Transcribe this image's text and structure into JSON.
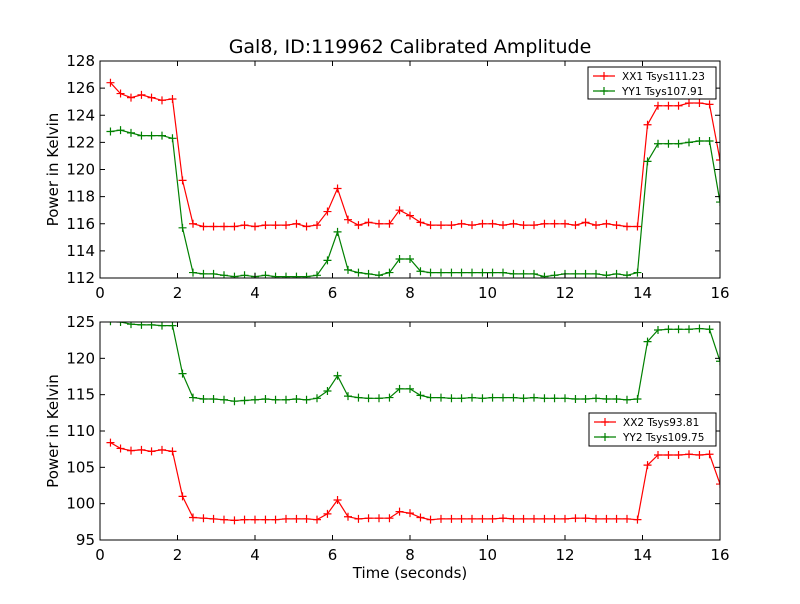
{
  "title": "Gal8, ID:119962 Calibrated Amplitude",
  "chart_data": [
    {
      "type": "line",
      "ylabel": "Power in Kelvin",
      "xlabel": "",
      "xlim": [
        0,
        16
      ],
      "ylim": [
        112,
        128
      ],
      "xticks": [
        0,
        2,
        4,
        6,
        8,
        10,
        12,
        14,
        16
      ],
      "yticks": [
        112,
        114,
        116,
        118,
        120,
        122,
        124,
        126,
        128
      ],
      "legend_position": "top-right",
      "grid": false,
      "x": [
        0.27,
        0.53,
        0.8,
        1.07,
        1.33,
        1.6,
        1.87,
        2.13,
        2.4,
        2.67,
        2.93,
        3.2,
        3.47,
        3.73,
        4.0,
        4.27,
        4.53,
        4.8,
        5.07,
        5.33,
        5.6,
        5.87,
        6.13,
        6.4,
        6.67,
        6.93,
        7.2,
        7.47,
        7.73,
        8.0,
        8.27,
        8.53,
        8.8,
        9.07,
        9.33,
        9.6,
        9.87,
        10.13,
        10.4,
        10.67,
        10.93,
        11.2,
        11.47,
        11.73,
        12.0,
        12.27,
        12.53,
        12.8,
        13.07,
        13.33,
        13.6,
        13.87,
        14.13,
        14.4,
        14.67,
        14.93,
        15.2,
        15.47,
        15.73,
        16.0
      ],
      "series": [
        {
          "name": "XX1 Tsys111.23",
          "color": "#ff0000",
          "values": [
            126.4,
            125.6,
            125.3,
            125.5,
            125.3,
            125.1,
            125.2,
            119.2,
            116.0,
            115.8,
            115.8,
            115.8,
            115.8,
            115.9,
            115.8,
            115.9,
            115.9,
            115.9,
            116.0,
            115.8,
            115.9,
            116.9,
            118.6,
            116.3,
            115.9,
            116.1,
            116.0,
            116.0,
            117.0,
            116.6,
            116.1,
            115.9,
            115.9,
            115.9,
            116.0,
            115.9,
            116.0,
            116.0,
            115.9,
            116.0,
            115.9,
            115.9,
            116.0,
            116.0,
            116.0,
            115.9,
            116.1,
            115.9,
            116.0,
            115.9,
            115.8,
            115.8,
            123.3,
            124.7,
            124.7,
            124.7,
            124.9,
            124.9,
            124.8,
            120.7
          ]
        },
        {
          "name": "YY1 Tsys107.91",
          "color": "#008000",
          "values": [
            122.8,
            122.9,
            122.7,
            122.5,
            122.5,
            122.5,
            122.3,
            115.7,
            112.4,
            112.3,
            112.3,
            112.2,
            112.1,
            112.2,
            112.1,
            112.2,
            112.1,
            112.1,
            112.1,
            112.1,
            112.2,
            113.3,
            115.4,
            112.6,
            112.4,
            112.3,
            112.2,
            112.4,
            113.4,
            113.4,
            112.5,
            112.4,
            112.4,
            112.4,
            112.4,
            112.4,
            112.4,
            112.4,
            112.4,
            112.3,
            112.3,
            112.3,
            112.1,
            112.2,
            112.3,
            112.3,
            112.3,
            112.3,
            112.2,
            112.3,
            112.2,
            112.4,
            120.6,
            121.9,
            121.9,
            121.9,
            122.0,
            122.1,
            122.1,
            117.6
          ]
        }
      ]
    },
    {
      "type": "line",
      "ylabel": "Power in Kelvin",
      "xlabel": "Time (seconds)",
      "xlim": [
        0,
        16
      ],
      "ylim": [
        95,
        125
      ],
      "xticks": [
        0,
        2,
        4,
        6,
        8,
        10,
        12,
        14,
        16
      ],
      "yticks": [
        95,
        100,
        105,
        110,
        115,
        120,
        125
      ],
      "legend_position": "right",
      "grid": false,
      "x": [
        0.27,
        0.53,
        0.8,
        1.07,
        1.33,
        1.6,
        1.87,
        2.13,
        2.4,
        2.67,
        2.93,
        3.2,
        3.47,
        3.73,
        4.0,
        4.27,
        4.53,
        4.8,
        5.07,
        5.33,
        5.6,
        5.87,
        6.13,
        6.4,
        6.67,
        6.93,
        7.2,
        7.47,
        7.73,
        8.0,
        8.27,
        8.53,
        8.8,
        9.07,
        9.33,
        9.6,
        9.87,
        10.13,
        10.4,
        10.67,
        10.93,
        11.2,
        11.47,
        11.73,
        12.0,
        12.27,
        12.53,
        12.8,
        13.07,
        13.33,
        13.6,
        13.87,
        14.13,
        14.4,
        14.67,
        14.93,
        15.2,
        15.47,
        15.73,
        16.0
      ],
      "series": [
        {
          "name": "XX2 Tsys93.81",
          "color": "#ff0000",
          "values": [
            108.4,
            107.6,
            107.3,
            107.4,
            107.2,
            107.4,
            107.2,
            101.0,
            98.1,
            98.0,
            97.9,
            97.8,
            97.7,
            97.8,
            97.8,
            97.8,
            97.8,
            97.9,
            97.9,
            97.9,
            97.8,
            98.6,
            100.5,
            98.2,
            97.9,
            98.0,
            98.0,
            98.0,
            98.9,
            98.7,
            98.1,
            97.8,
            97.9,
            97.9,
            97.9,
            97.9,
            97.9,
            97.9,
            98.0,
            97.9,
            97.9,
            97.9,
            97.9,
            97.9,
            97.9,
            98.0,
            98.0,
            97.9,
            97.9,
            97.9,
            97.9,
            97.8,
            105.3,
            106.7,
            106.7,
            106.7,
            106.8,
            106.7,
            106.8,
            102.7
          ]
        },
        {
          "name": "YY2 Tsys109.75",
          "color": "#008000",
          "values": [
            125.1,
            125.0,
            124.7,
            124.6,
            124.6,
            124.5,
            124.5,
            117.9,
            114.6,
            114.4,
            114.4,
            114.3,
            114.1,
            114.2,
            114.3,
            114.4,
            114.3,
            114.3,
            114.4,
            114.3,
            114.5,
            115.5,
            117.6,
            114.8,
            114.6,
            114.5,
            114.5,
            114.6,
            115.8,
            115.8,
            114.9,
            114.6,
            114.6,
            114.5,
            114.5,
            114.6,
            114.5,
            114.6,
            114.6,
            114.6,
            114.5,
            114.6,
            114.5,
            114.5,
            114.5,
            114.4,
            114.4,
            114.5,
            114.4,
            114.4,
            114.3,
            114.4,
            122.3,
            123.9,
            124.0,
            124.0,
            124.0,
            124.1,
            124.0,
            119.6
          ]
        }
      ]
    }
  ]
}
